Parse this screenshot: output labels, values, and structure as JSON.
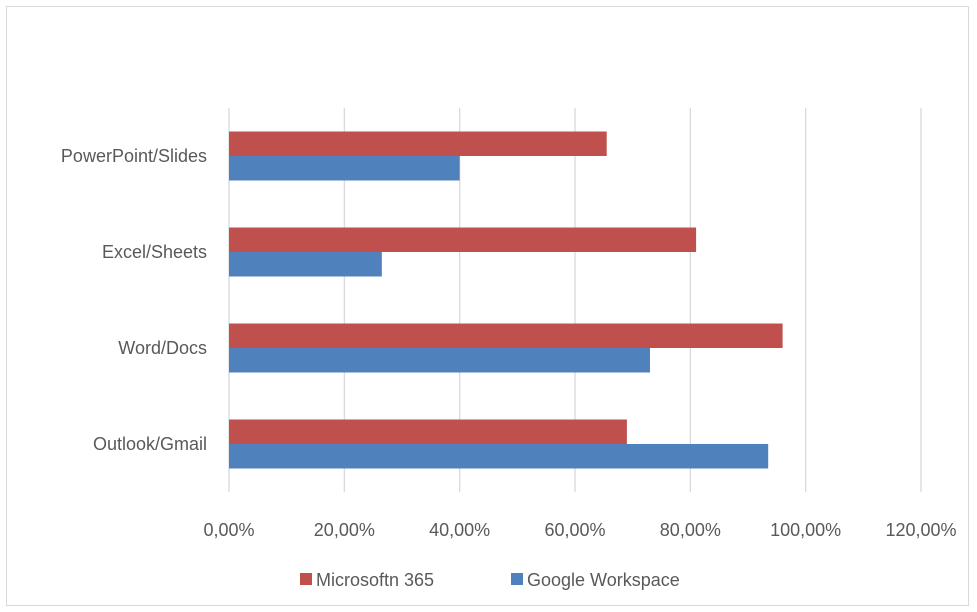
{
  "chart_data": {
    "type": "bar",
    "orientation": "horizontal",
    "title": "",
    "xlabel": "",
    "ylabel": "",
    "categories": [
      "Outlook/Gmail",
      "Word/Docs",
      "Excel/Sheets",
      "PowerPoint/Slides"
    ],
    "series": [
      {
        "name": "Microsoftn 365",
        "color": "#c0504d",
        "values": [
          0.69,
          0.96,
          0.81,
          0.655
        ]
      },
      {
        "name": "Google Workspace",
        "color": "#4f81bd",
        "values": [
          0.935,
          0.73,
          0.265,
          0.4
        ]
      }
    ],
    "xlim": [
      0,
      1.2
    ],
    "ticks": [
      0,
      0.2,
      0.4,
      0.6,
      0.8,
      1.0,
      1.2
    ],
    "tick_labels": [
      "0,00%",
      "20,00%",
      "40,00%",
      "60,00%",
      "80,00%",
      "100,00%",
      "120,00%"
    ],
    "grid": true,
    "gridline_color": "#d9d9d9",
    "legend_position": "bottom"
  }
}
